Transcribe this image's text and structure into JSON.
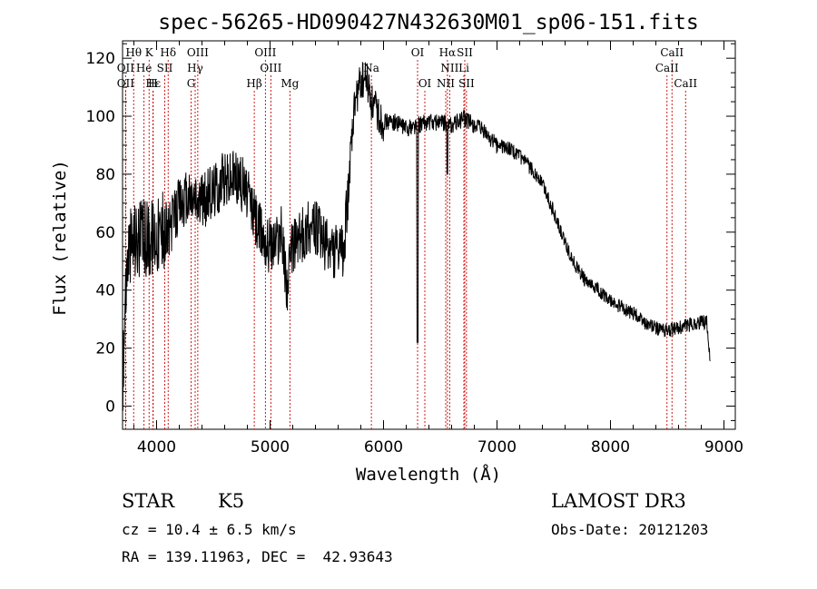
{
  "chart_data": {
    "type": "line",
    "title": "spec-56265-HD090427N432630M01_sp06-151.fits",
    "xlabel": "Wavelength (Å)",
    "ylabel": "Flux (relative)",
    "xlim": [
      3700,
      9100
    ],
    "ylim": [
      -8,
      126
    ],
    "xticks": [
      4000,
      5000,
      6000,
      7000,
      8000,
      9000
    ],
    "yticks": [
      0,
      20,
      40,
      60,
      80,
      100,
      120
    ],
    "grid": false,
    "line_color": "#000000",
    "marker_color": "#cc0000",
    "spectrum_anchors": {
      "x": [
        3700,
        3720,
        3750,
        3800,
        3900,
        4000,
        4100,
        4200,
        4300,
        4400,
        4500,
        4600,
        4700,
        4800,
        4900,
        5000,
        5100,
        5150,
        5200,
        5300,
        5400,
        5500,
        5600,
        5650,
        5700,
        5750,
        5800,
        5850,
        5900,
        6000,
        6100,
        6200,
        6300,
        6400,
        6500,
        6600,
        6700,
        6800,
        6900,
        7000,
        7100,
        7200,
        7300,
        7400,
        7500,
        7600,
        7700,
        7800,
        7900,
        8000,
        8100,
        8200,
        8300,
        8400,
        8500,
        8600,
        8700,
        8800,
        8850,
        8880
      ],
      "y": [
        3,
        35,
        55,
        58,
        58,
        60,
        60,
        70,
        72,
        70,
        75,
        78,
        80,
        73,
        62,
        55,
        60,
        42,
        56,
        60,
        62,
        55,
        52,
        53,
        82,
        105,
        112,
        113,
        104,
        98,
        98,
        96,
        97,
        98,
        98,
        97,
        99,
        97,
        94,
        90,
        89,
        86,
        82,
        77,
        67,
        56,
        48,
        42,
        40,
        36,
        34,
        32,
        29,
        27,
        26,
        27,
        28,
        29,
        29,
        14
      ]
    },
    "lines": [
      {
        "name": "Hθ",
        "wavelength": 3798,
        "row": 0
      },
      {
        "name": "K",
        "wavelength": 3934,
        "row": 0
      },
      {
        "name": "Hδ",
        "wavelength": 4102,
        "row": 0
      },
      {
        "name": "OIII",
        "wavelength": 4363,
        "row": 0
      },
      {
        "name": "OIII",
        "wavelength": 4959,
        "row": 0
      },
      {
        "name": "OI",
        "wavelength": 6300,
        "row": 0
      },
      {
        "name": "Hα",
        "wavelength": 6563,
        "row": 0
      },
      {
        "name": "SII",
        "wavelength": 6716,
        "row": 0
      },
      {
        "name": "CaII",
        "wavelength": 8542,
        "row": 0
      },
      {
        "name": "OII",
        "wavelength": 3727,
        "row": 1
      },
      {
        "name": "He",
        "wavelength": 3889,
        "row": 1
      },
      {
        "name": "SII",
        "wavelength": 4072,
        "row": 1
      },
      {
        "name": "Hγ",
        "wavelength": 4340,
        "row": 1
      },
      {
        "name": "OIII",
        "wavelength": 5007,
        "row": 1
      },
      {
        "name": "Na",
        "wavelength": 5893,
        "row": 1
      },
      {
        "name": "NII",
        "wavelength": 6583,
        "row": 1
      },
      {
        "name": "Li",
        "wavelength": 6708,
        "row": 1
      },
      {
        "name": "CaII",
        "wavelength": 8498,
        "row": 1
      },
      {
        "name": "OII",
        "wavelength": 3727,
        "row": 2
      },
      {
        "name": "Hε",
        "wavelength": 3970,
        "row": 2
      },
      {
        "name": "H",
        "wavelength": 3968,
        "row": 2
      },
      {
        "name": "G",
        "wavelength": 4304,
        "row": 2
      },
      {
        "name": "Hβ",
        "wavelength": 4861,
        "row": 2
      },
      {
        "name": "Mg",
        "wavelength": 5175,
        "row": 2
      },
      {
        "name": "OI",
        "wavelength": 6364,
        "row": 2
      },
      {
        "name": "NII",
        "wavelength": 6548,
        "row": 2
      },
      {
        "name": "SII",
        "wavelength": 6731,
        "row": 2
      },
      {
        "name": "CaII",
        "wavelength": 8662,
        "row": 2
      }
    ]
  },
  "info": {
    "object_class": "STAR",
    "subclass": "K5",
    "survey": "LAMOST DR3",
    "cz": "cz = 10.4 ± 6.5 km/s",
    "obs_date": "Obs-Date: 20121203",
    "coords": "RA = 139.11963, DEC =  42.93643"
  }
}
